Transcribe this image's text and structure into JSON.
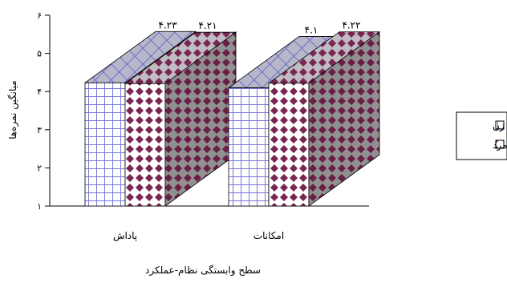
{
  "chart_data": {
    "type": "bar",
    "style": "3d-clustered",
    "categories": [
      "پاداش",
      "امکانات"
    ],
    "series": [
      {
        "name": "زن",
        "values": [
          4.23,
          4.1
        ],
        "value_labels": [
          "۴.۲۳",
          "۴.۱"
        ],
        "pattern": "grid",
        "color": "#7777dd"
      },
      {
        "name": "مرد",
        "values": [
          4.21,
          4.22
        ],
        "value_labels": [
          "۴.۲۱",
          "۴.۲۲"
        ],
        "pattern": "diamond",
        "color": "#7a2652"
      }
    ],
    "xlabel": "سطح وابستگی نظام-عملکرد",
    "ylabel": "میانگین نمره‌ها",
    "ylim": [
      1,
      6
    ],
    "yticks": [
      1,
      2,
      3,
      4,
      5,
      6
    ],
    "ytick_labels": [
      "۱",
      "۲",
      "۳",
      "۴",
      "۵",
      "۶"
    ],
    "legend_position": "right",
    "grid": false
  }
}
